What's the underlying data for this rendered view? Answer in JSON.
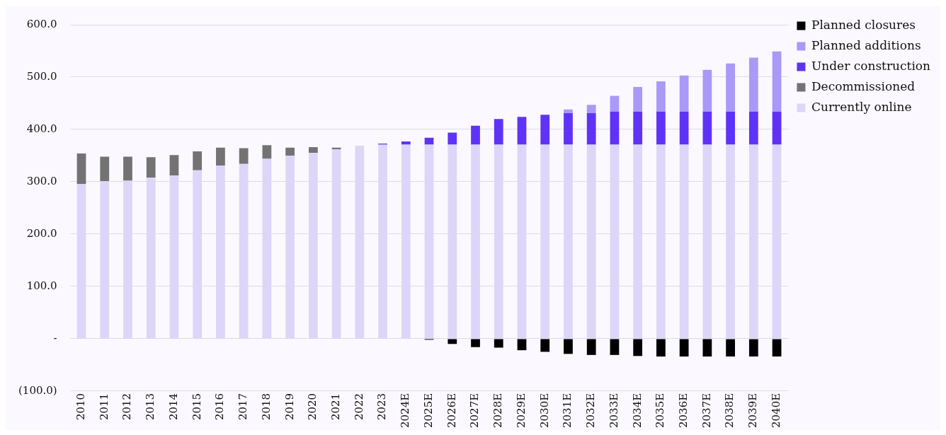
{
  "chart_data": {
    "type": "bar",
    "stacked": true,
    "categories": [
      "2010",
      "2011",
      "2012",
      "2013",
      "2014",
      "2015",
      "2016",
      "2017",
      "2018",
      "2019",
      "2020",
      "2021",
      "2022",
      "2023",
      "2024E",
      "2025E",
      "2026E",
      "2027E",
      "2028E",
      "2029E",
      "2030E",
      "2031E",
      "2032E",
      "2033E",
      "2034E",
      "2035E",
      "2036E",
      "2037E",
      "2038E",
      "2039E",
      "2040E"
    ],
    "series": [
      {
        "name": "Currently online",
        "color": "#ddd6f9",
        "values": [
          296,
          301,
          302,
          308,
          312,
          322,
          331,
          334,
          344,
          350,
          355,
          362,
          369,
          371,
          371,
          371,
          371,
          371,
          371,
          371,
          371,
          371,
          371,
          371,
          371,
          371,
          371,
          371,
          371,
          371,
          371
        ]
      },
      {
        "name": "Decommissioned",
        "color": "#737373",
        "values": [
          58,
          47,
          46,
          39,
          39,
          36,
          34,
          30,
          26,
          15,
          11,
          3,
          null,
          null,
          null,
          null,
          null,
          null,
          null,
          null,
          null,
          null,
          null,
          null,
          null,
          null,
          null,
          null,
          null,
          null,
          null
        ]
      },
      {
        "name": "Under construction",
        "color": "#5f33f7",
        "values": [
          null,
          null,
          null,
          null,
          null,
          null,
          null,
          null,
          null,
          null,
          null,
          null,
          null,
          2,
          6,
          13,
          23,
          36,
          49,
          53,
          57,
          60,
          60,
          63,
          63,
          63,
          63,
          63,
          63,
          63,
          63
        ]
      },
      {
        "name": "Planned additions",
        "color": "#ab99f7",
        "values": [
          null,
          null,
          null,
          null,
          null,
          null,
          null,
          null,
          null,
          null,
          null,
          null,
          null,
          null,
          null,
          null,
          null,
          null,
          null,
          null,
          null,
          7,
          16,
          30,
          47,
          58,
          69,
          80,
          92,
          103,
          115
        ]
      },
      {
        "name": "Planned closures",
        "color": "#000000",
        "values": [
          null,
          null,
          null,
          null,
          null,
          null,
          null,
          null,
          null,
          null,
          null,
          null,
          null,
          null,
          null,
          -2,
          -10,
          -16,
          -17,
          -22,
          -25,
          -29,
          -31,
          -31,
          -33,
          -34,
          -34,
          -34,
          -34,
          -34,
          -34
        ]
      }
    ],
    "ylim": [
      -100,
      600
    ],
    "yticks": [
      {
        "value": -100,
        "label": "(100.0)"
      },
      {
        "value": 0,
        "label": "-"
      },
      {
        "value": 100,
        "label": "100.0"
      },
      {
        "value": 200,
        "label": "200.0"
      },
      {
        "value": 300,
        "label": "300.0"
      },
      {
        "value": 400,
        "label": "400.0"
      },
      {
        "value": 500,
        "label": "500.0"
      },
      {
        "value": 600,
        "label": "600.0"
      }
    ],
    "grid": "y",
    "legend": "top right"
  }
}
